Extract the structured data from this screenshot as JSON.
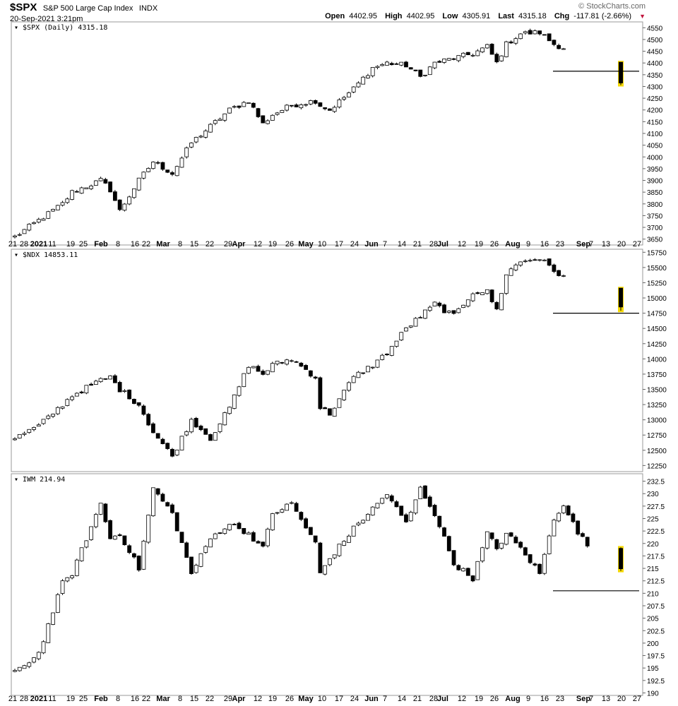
{
  "header": {
    "symbol": "$SPX",
    "description": "S&P 500 Large Cap Index",
    "exchange": "INDX",
    "timestamp": "20-Sep-2021 3:21pm",
    "watermark": "© StockCharts.com",
    "open_label": "Open",
    "open": "4402.95",
    "high_label": "High",
    "high": "4402.95",
    "low_label": "Low",
    "low": "4305.91",
    "last_label": "Last",
    "last": "4315.18",
    "chg_label": "Chg",
    "chg": "-117.81 (-2.66%)",
    "chg_direction_color": "#c0143c"
  },
  "colors": {
    "up_body": "#ffffff",
    "down_body": "#000000",
    "highlight": "#f5d800",
    "grid": "#cccccc",
    "support_line": "#000000"
  },
  "x_axis": {
    "labels": [
      "21",
      "28",
      "2021",
      "11",
      "19",
      "25",
      "Feb",
      "8",
      "16",
      "22",
      "Mar",
      "8",
      "15",
      "22",
      "29",
      "Apr",
      "12",
      "19",
      "26",
      "May",
      "10",
      "17",
      "24",
      "Jun",
      "7",
      "14",
      "21",
      "28",
      "Jul",
      "12",
      "19",
      "26",
      "Aug",
      "9",
      "16",
      "23",
      "Sep",
      "7",
      "13",
      "20",
      "27"
    ],
    "bold": [
      "2021",
      "Feb",
      "Mar",
      "Apr",
      "May",
      "Jun",
      "Jul",
      "Aug",
      "Sep"
    ]
  },
  "chart_data": [
    {
      "type": "candlestick",
      "label": "$SPX (Daily) 4315.18",
      "ylim": [
        3625,
        4575
      ],
      "y_ticks": [
        3650,
        3700,
        3750,
        3800,
        3850,
        3900,
        3950,
        4000,
        4050,
        4100,
        4150,
        4200,
        4250,
        4300,
        4350,
        4400,
        4450,
        4500,
        4550
      ],
      "support": 4365,
      "last_candle": {
        "open": 4402.95,
        "high": 4402.95,
        "low": 4305.91,
        "close": 4315.18
      },
      "path": [
        [
          0,
          3660
        ],
        [
          5,
          3730
        ],
        [
          10,
          3800
        ],
        [
          12,
          3850
        ],
        [
          18,
          3900
        ],
        [
          20,
          3860
        ],
        [
          22,
          3770
        ],
        [
          26,
          3900
        ],
        [
          29,
          3980
        ],
        [
          33,
          3930
        ],
        [
          37,
          4060
        ],
        [
          41,
          4130
        ],
        [
          45,
          4200
        ],
        [
          49,
          4240
        ],
        [
          52,
          4140
        ],
        [
          54,
          4180
        ],
        [
          58,
          4220
        ],
        [
          63,
          4240
        ],
        [
          64,
          4220
        ],
        [
          66,
          4200
        ],
        [
          71,
          4290
        ],
        [
          75,
          4380
        ],
        [
          78,
          4400
        ],
        [
          82,
          4390
        ],
        [
          85,
          4340
        ],
        [
          88,
          4400
        ],
        [
          92,
          4420
        ],
        [
          96,
          4440
        ],
        [
          99,
          4470
        ],
        [
          101,
          4400
        ],
        [
          103,
          4480
        ],
        [
          106,
          4525
        ],
        [
          110,
          4530
        ],
        [
          113,
          4480
        ],
        [
          115,
          4465
        ]
      ]
    },
    {
      "type": "candlestick",
      "label": "$NDX 14853.11",
      "ylim": [
        12150,
        15800
      ],
      "y_ticks": [
        12250,
        12500,
        12750,
        13000,
        13250,
        13500,
        13750,
        14000,
        14250,
        14500,
        14750,
        15000,
        15250,
        15500,
        15750
      ],
      "support": 14750,
      "last_candle": {
        "open": 15160,
        "high": 15160,
        "low": 14790,
        "close": 14853
      },
      "path": [
        [
          0,
          12700
        ],
        [
          5,
          12900
        ],
        [
          10,
          13250
        ],
        [
          12,
          13400
        ],
        [
          18,
          13650
        ],
        [
          20,
          13700
        ],
        [
          22,
          13500
        ],
        [
          26,
          13250
        ],
        [
          29,
          12800
        ],
        [
          33,
          12400
        ],
        [
          37,
          13000
        ],
        [
          41,
          12700
        ],
        [
          45,
          13200
        ],
        [
          49,
          13900
        ],
        [
          52,
          13750
        ],
        [
          54,
          13900
        ],
        [
          58,
          14000
        ],
        [
          63,
          13700
        ],
        [
          64,
          13200
        ],
        [
          66,
          13100
        ],
        [
          71,
          13700
        ],
        [
          75,
          13900
        ],
        [
          78,
          14100
        ],
        [
          82,
          14500
        ],
        [
          85,
          14700
        ],
        [
          88,
          14900
        ],
        [
          92,
          14700
        ],
        [
          96,
          15100
        ],
        [
          99,
          15100
        ],
        [
          101,
          14800
        ],
        [
          103,
          15400
        ],
        [
          106,
          15600
        ],
        [
          110,
          15650
        ],
        [
          113,
          15450
        ],
        [
          115,
          15350
        ]
      ]
    },
    {
      "type": "candlestick",
      "label": "IWM 214.94",
      "ylim": [
        189.5,
        234
      ],
      "y_ticks": [
        190,
        192.5,
        195,
        197.5,
        200,
        202.5,
        205,
        207.5,
        210,
        212.5,
        215,
        217.5,
        220,
        222.5,
        225,
        227.5,
        230,
        232.5
      ],
      "support": 210.5,
      "last_candle": {
        "open": 219.0,
        "high": 219.2,
        "low": 214.5,
        "close": 214.94
      },
      "path": [
        [
          0,
          194
        ],
        [
          5,
          198
        ],
        [
          10,
          212
        ],
        [
          12,
          214
        ],
        [
          18,
          228
        ],
        [
          20,
          221
        ],
        [
          22,
          222
        ],
        [
          26,
          215
        ],
        [
          29,
          231
        ],
        [
          33,
          226
        ],
        [
          37,
          214
        ],
        [
          41,
          221
        ],
        [
          45,
          224
        ],
        [
          49,
          222
        ],
        [
          52,
          219
        ],
        [
          54,
          226
        ],
        [
          58,
          228
        ],
        [
          63,
          220
        ],
        [
          64,
          214
        ],
        [
          66,
          217
        ],
        [
          71,
          223
        ],
        [
          75,
          227
        ],
        [
          78,
          230
        ],
        [
          82,
          224
        ],
        [
          85,
          231
        ],
        [
          88,
          226
        ],
        [
          92,
          216
        ],
        [
          96,
          213
        ],
        [
          99,
          222
        ],
        [
          101,
          219
        ],
        [
          103,
          222
        ],
        [
          106,
          219
        ],
        [
          110,
          214
        ],
        [
          113,
          225
        ],
        [
          115,
          228
        ],
        [
          118,
          222
        ],
        [
          120,
          220
        ]
      ]
    }
  ]
}
